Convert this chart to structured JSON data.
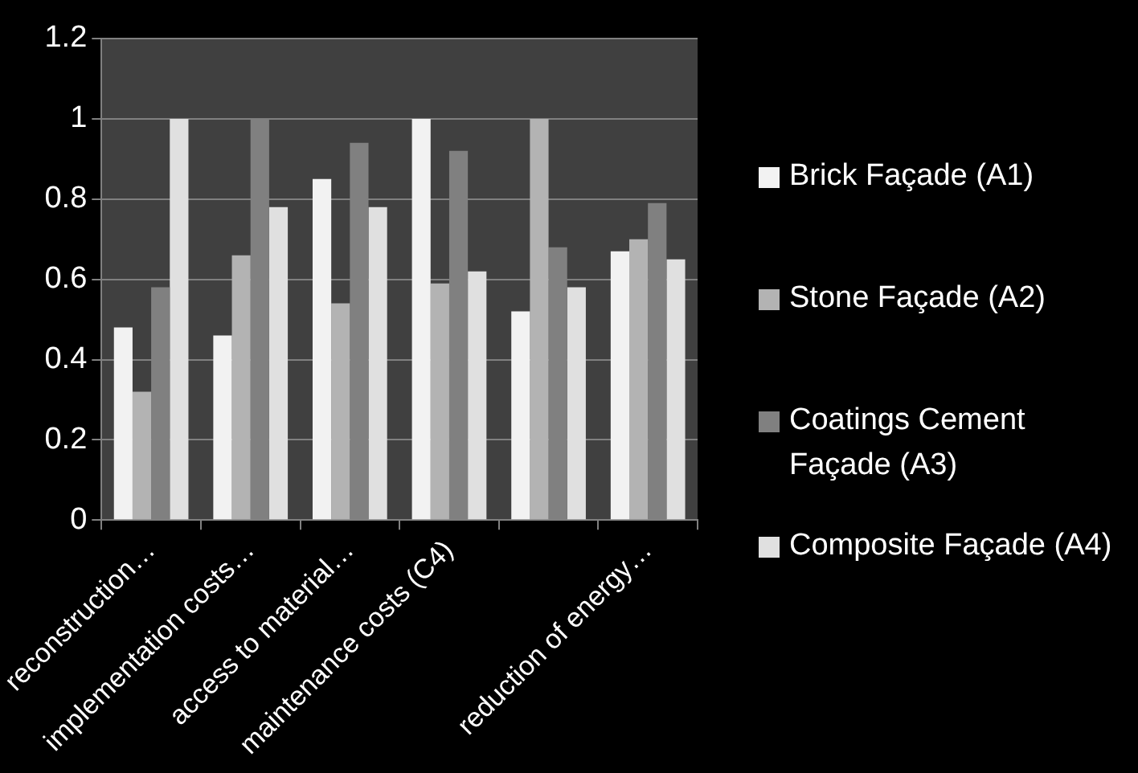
{
  "chart_data": {
    "type": "bar",
    "categories": [
      "reconstruction…",
      "implementation costs…",
      "access to material…",
      "maintenance costs (C4)",
      null,
      "reduction of energy…"
    ],
    "series": [
      {
        "name": "Brick Façade (A1)",
        "color": "#f2f2f2",
        "values": [
          0.48,
          0.46,
          0.85,
          1,
          0.52,
          0.67
        ]
      },
      {
        "name": "Stone Façade (A2)",
        "color": "#b3b3b3",
        "values": [
          0.32,
          0.66,
          0.54,
          0.59,
          1,
          0.7
        ]
      },
      {
        "name": "Coatings Cement Façade (A3)",
        "color": "#808080",
        "values": [
          0.58,
          1,
          0.94,
          0.92,
          0.68,
          0.79
        ]
      },
      {
        "name": "Composite Façade (A4)",
        "color": "#e0e0e0",
        "values": [
          1,
          0.78,
          0.78,
          0.62,
          0.58,
          0.65
        ]
      }
    ],
    "ylim": [
      0,
      1.2
    ],
    "yticks": [
      0,
      0.2,
      0.4,
      0.6,
      0.8,
      1,
      1.2
    ],
    "grid": "y",
    "legend": "right"
  }
}
